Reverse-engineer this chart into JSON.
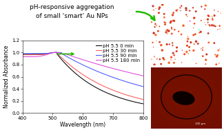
{
  "title_line1": "pH-responsive aggregation",
  "title_line2": "of small ‘smart’ Au NPs",
  "xlabel": "Wavelength (nm)",
  "ylabel": "Normalized Absorbance",
  "xlim": [
    400,
    800
  ],
  "ylim": [
    0.0,
    1.2
  ],
  "yticks": [
    0.0,
    0.2,
    0.4,
    0.6,
    0.8,
    1.0,
    1.2
  ],
  "xticks": [
    400,
    500,
    600,
    700,
    800
  ],
  "legend_labels": [
    "pH 5.5 0 min",
    "pH 5.5 30 min",
    "pH 5.5 90 min",
    "pH 5.5 180 min"
  ],
  "line_colors": [
    "#000000",
    "#ff5555",
    "#4455ff",
    "#dd44dd"
  ],
  "arrow_color": "#22bb00",
  "title_fontsize": 6.5,
  "axis_fontsize": 5.5,
  "legend_fontsize": 5.0,
  "tick_fontsize": 5.0
}
